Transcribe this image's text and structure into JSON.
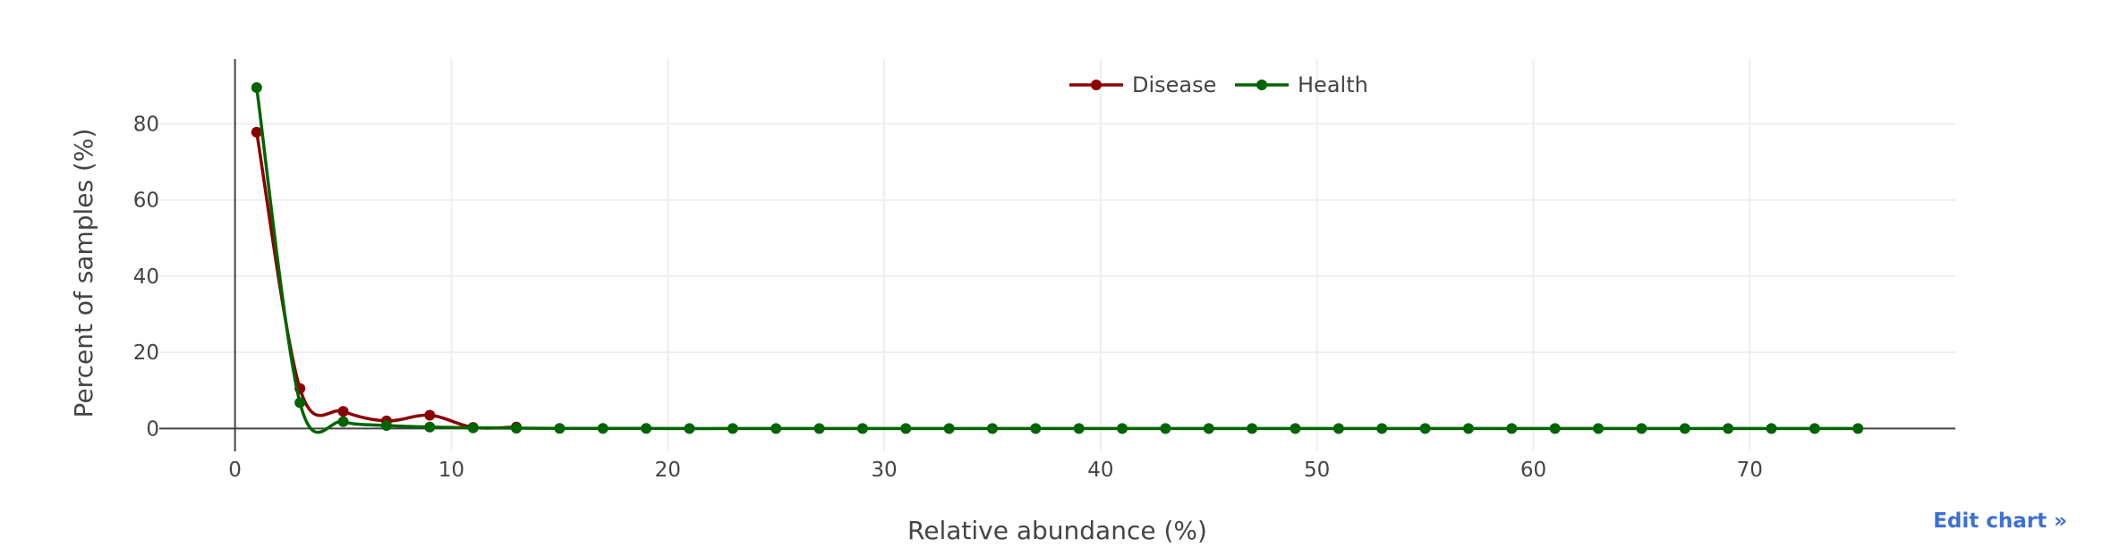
{
  "chart_data": {
    "type": "line",
    "xlabel": "Relative abundance (%)",
    "ylabel": "Percent of samples (%)",
    "xlim": [
      -3.5,
      79.5
    ],
    "ylim": [
      -6,
      97
    ],
    "x_ticks": [
      0,
      10,
      20,
      30,
      40,
      50,
      60,
      70
    ],
    "y_ticks": [
      0,
      20,
      40,
      60,
      80
    ],
    "grid": true,
    "legend_position": "top-center",
    "series": [
      {
        "name": "Disease",
        "color": "#8b0000",
        "x": [
          1,
          3,
          5,
          7,
          9,
          11,
          13
        ],
        "y": [
          77.8,
          10.5,
          4.5,
          2.0,
          3.5,
          0.3,
          0.4
        ]
      },
      {
        "name": "Health",
        "color": "#006400",
        "x": [
          1,
          3,
          5,
          7,
          9,
          11,
          13,
          15,
          17,
          19,
          21,
          23,
          25,
          27,
          29,
          31,
          33,
          35,
          37,
          39,
          41,
          43,
          45,
          47,
          49,
          51,
          53,
          55,
          57,
          59,
          61,
          63,
          65,
          67,
          69,
          71,
          73,
          75
        ],
        "y": [
          89.5,
          6.8,
          1.8,
          0.8,
          0.4,
          0.2,
          0.1,
          0.05,
          0.05,
          0.05,
          0,
          0,
          0,
          0,
          0,
          0,
          0,
          0,
          0,
          0,
          0,
          0,
          0,
          0,
          0,
          0,
          0,
          0,
          0,
          0,
          0,
          0,
          0,
          0,
          0,
          0,
          0,
          0
        ]
      }
    ]
  },
  "edit_link": "Edit chart »"
}
